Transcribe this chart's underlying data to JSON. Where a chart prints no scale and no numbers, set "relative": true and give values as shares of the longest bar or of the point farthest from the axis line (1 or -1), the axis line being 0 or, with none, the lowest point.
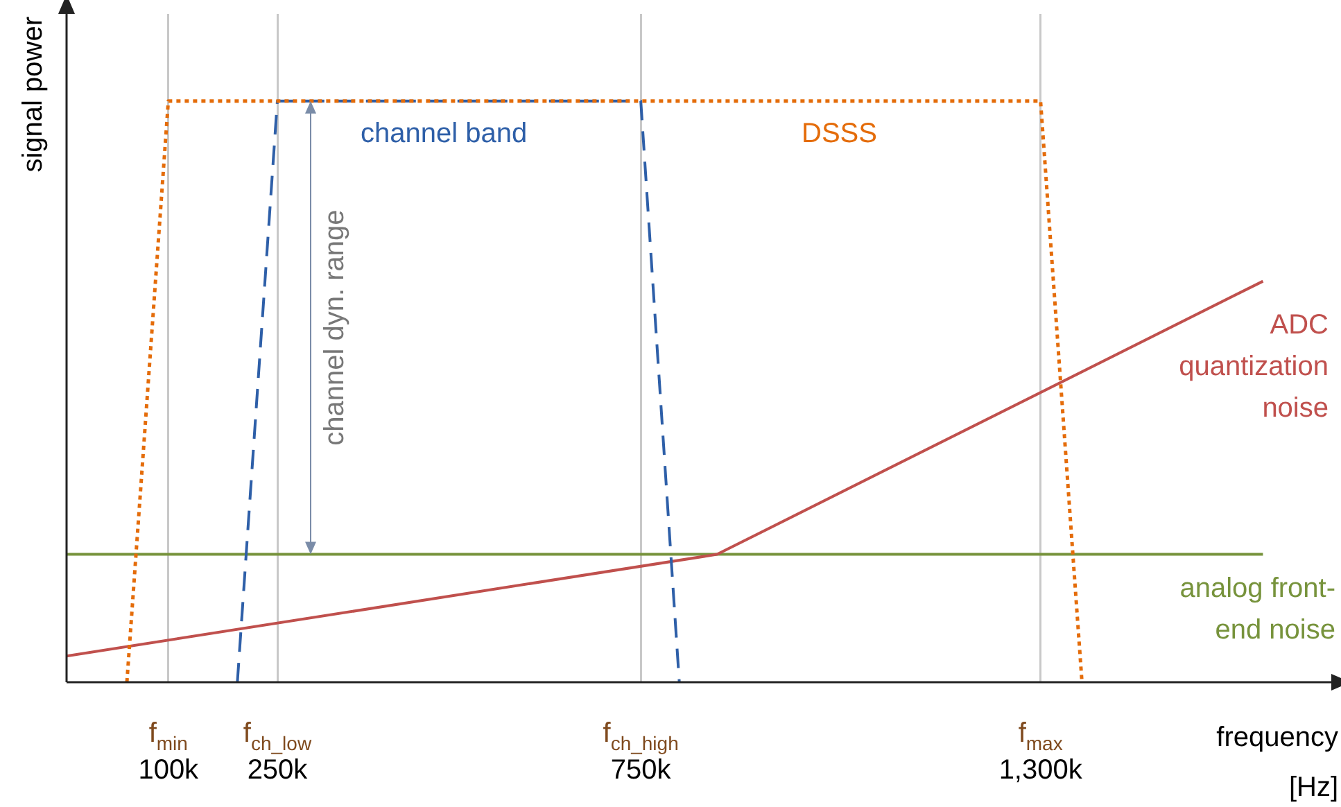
{
  "chart_data": {
    "type": "line",
    "relative": true,
    "xlabel": "frequency",
    "ylabel": "signal power",
    "xlim": [
      -40,
      1700
    ],
    "xticks": [
      {
        "value": 100,
        "label": "100k"
      },
      {
        "value": 250,
        "label": "250k"
      },
      {
        "value": 750,
        "label": "750k"
      },
      {
        "value": 1300,
        "label": "1,300k"
      }
    ],
    "grid": "x",
    "legend": false,
    "marker": "none",
    "series": [
      {
        "name": "DSSS",
        "color": "#e46c0a",
        "line_style": "dotted",
        "x": [
          43,
          100,
          1300,
          1357
        ],
        "values": [
          0,
          1,
          1,
          0
        ]
      },
      {
        "name": "channel band",
        "color": "#2e5fa8",
        "line_style": "dashed",
        "x": [
          195,
          250,
          750,
          803
        ],
        "values": [
          0,
          1,
          1,
          0
        ]
      },
      {
        "name": "ADC quantization noise",
        "color": "#c0504d",
        "line_style": "solid",
        "x": [
          -40,
          855,
          1606
        ],
        "values": [
          0.045,
          0.22,
          0.69
        ]
      },
      {
        "name": "analog front-end noise",
        "color": "#77933c",
        "line_style": "solid",
        "x": [
          -40,
          1606
        ],
        "values": [
          0.22,
          0.22
        ]
      }
    ],
    "annotations": [
      "f$_{min}$",
      "f$_{ch_low}$",
      "f$_{ch_high}$",
      "f$_{max}$",
      "[Hz]",
      "channel dyn. range"
    ]
  }
}
